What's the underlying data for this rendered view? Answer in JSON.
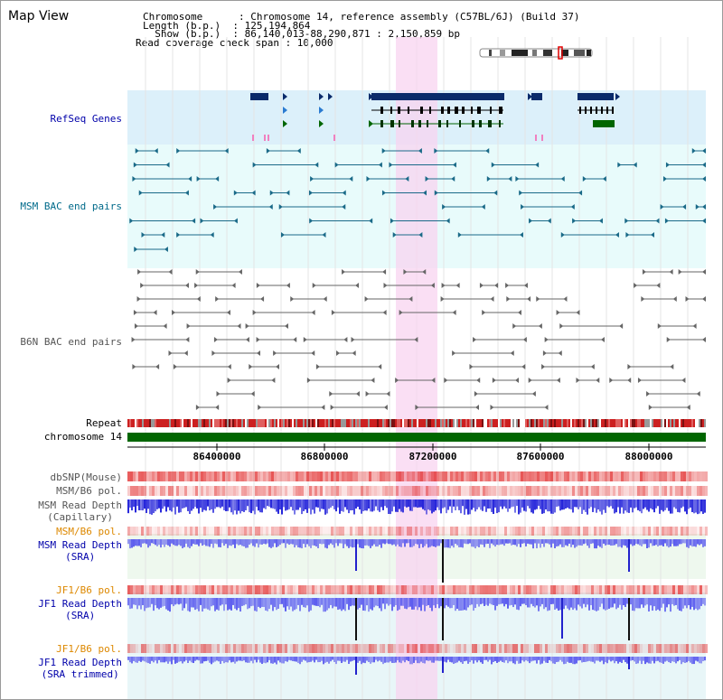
{
  "page_title": "Map View",
  "info": {
    "chromosome_line": "Chromosome      : Chromosome 14, reference assembly (C57BL/6J) (Build 37)",
    "length_line": "Length (b.p.)  : 125,194,864",
    "show_line": "  Show (b.p.)  : 86,140,013-88,290,871 : 2,150,859 bp",
    "coverage_line": "Read coverage check span : 10,000"
  },
  "tracks": {
    "refseq": "RefSeq Genes",
    "msm_bac": "MSM BAC end pairs",
    "b6n_bac": "B6N BAC end pairs",
    "repeat": "Repeat",
    "chromosome": "chromosome 14",
    "dbsnp": "dbSNP(Mouse)",
    "msm_b6_pol_1": "MSM/B6 pol.",
    "msm_depth_cap_1": "MSM Read Depth",
    "msm_depth_cap_2": "(Capillary)",
    "msm_b6_pol_2": "MSM/B6 pol.",
    "msm_depth_sra_1": "MSM Read Depth",
    "msm_depth_sra_2": "(SRA)",
    "jf1_b6_pol_1": "JF1/B6 pol.",
    "jf1_depth_sra_1": "JF1 Read Depth",
    "jf1_depth_sra_2": "(SRA)",
    "jf1_b6_pol_2": "JF1/B6 pol.",
    "jf1_depth_trim_1": "JF1 Read Depth",
    "jf1_depth_trim_2": "(SRA trimmed)"
  },
  "axis_ticks": [
    "86400000",
    "86800000",
    "87200000",
    "87600000",
    "88000000"
  ],
  "colors": {
    "label_blue": "#0000aa",
    "label_teal": "#006a8a",
    "label_orange": "#dd8800",
    "label_gray": "#555555",
    "refseq_bg": "#dcf0fa",
    "msm_bg": "#e8fbfb",
    "highlight": "#f8d4f0",
    "chromosome_bar": "#006600"
  }
}
